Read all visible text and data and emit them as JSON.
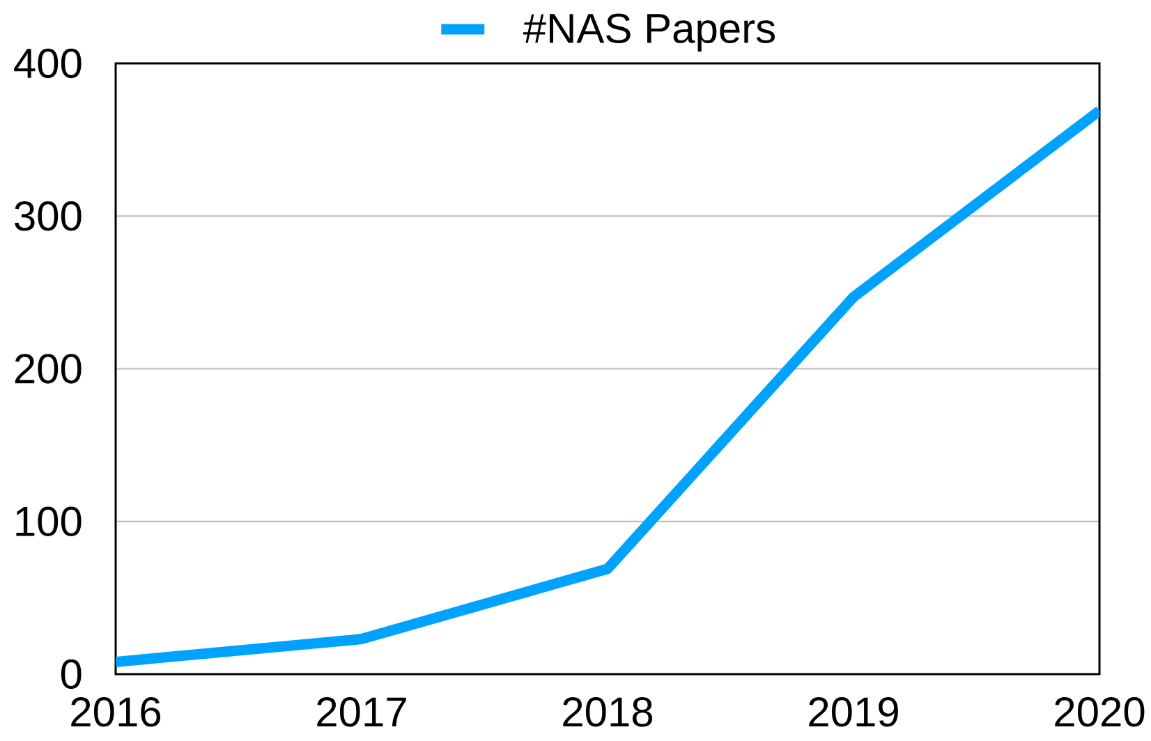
{
  "chart_data": {
    "type": "line",
    "x": [
      2016,
      2017,
      2018,
      2019,
      2020
    ],
    "series": [
      {
        "name": "#NAS Papers",
        "color": "#00a2ff",
        "values": [
          8,
          23,
          69,
          247,
          369
        ]
      }
    ],
    "xlim": [
      2016,
      2020
    ],
    "xticks": [
      2016,
      2017,
      2018,
      2019,
      2020
    ],
    "ylim": [
      0,
      400
    ],
    "yticks": [
      0,
      100,
      200,
      300,
      400
    ],
    "grid": "y",
    "legend": "top"
  }
}
